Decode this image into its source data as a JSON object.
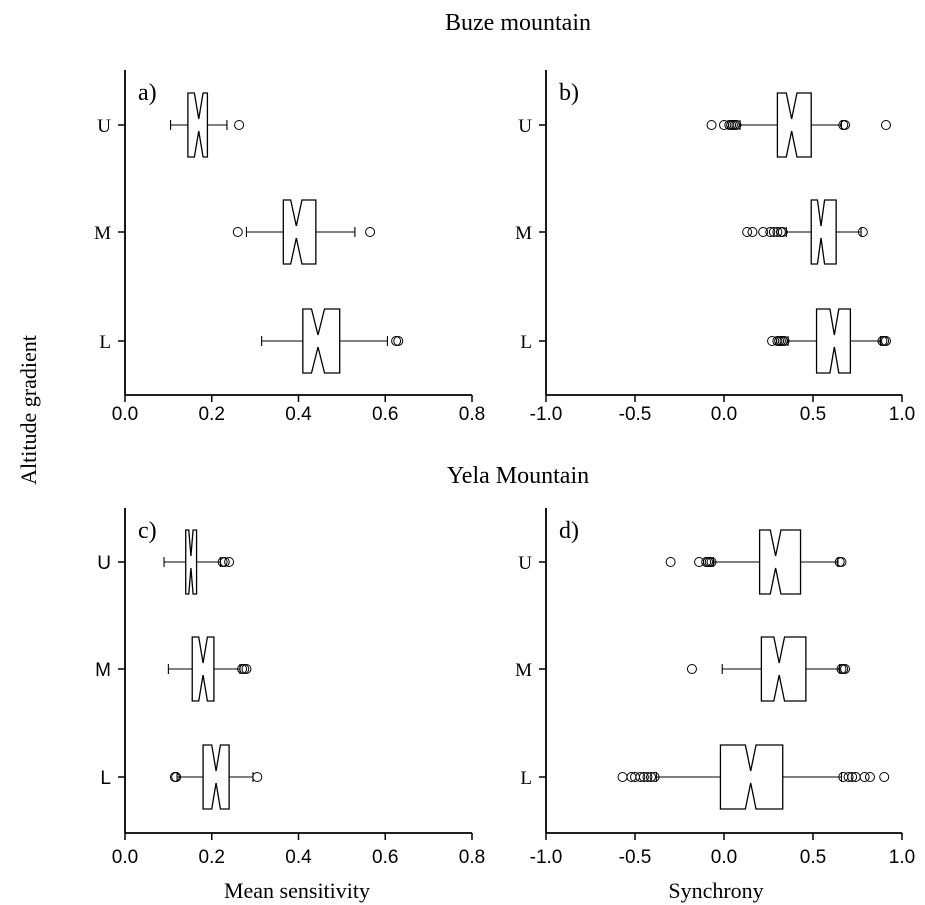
{
  "section_titles": {
    "top": "Buze mountain",
    "bottom": "Yela Mountain"
  },
  "shared_labels": {
    "ylabel": "Altitude gradient",
    "xlabel_left": "Mean sensitivity",
    "xlabel_right": "Synchrony"
  },
  "chart_data": [
    {
      "type": "boxplot",
      "panel": "a)",
      "orientation": "horizontal",
      "categories": [
        "U",
        "M",
        "L"
      ],
      "xlim": [
        0,
        0.8
      ],
      "xticks": [
        "0.0",
        "0.2",
        "0.4",
        "0.6",
        "0.8"
      ],
      "boxes": [
        {
          "category": "U",
          "whisker_low": 0.105,
          "q1": 0.145,
          "median": 0.17,
          "q3": 0.19,
          "notch_low": 0.16,
          "notch_high": 0.18,
          "whisker_high": 0.235,
          "outliers": [
            0.263
          ]
        },
        {
          "category": "M",
          "whisker_low": 0.28,
          "q1": 0.365,
          "median": 0.395,
          "q3": 0.44,
          "notch_low": 0.382,
          "notch_high": 0.408,
          "whisker_high": 0.53,
          "outliers": [
            0.26,
            0.565
          ]
        },
        {
          "category": "L",
          "whisker_low": 0.315,
          "q1": 0.41,
          "median": 0.445,
          "q3": 0.495,
          "notch_low": 0.43,
          "notch_high": 0.46,
          "whisker_high": 0.605,
          "outliers": [
            0.625,
            0.63
          ]
        }
      ]
    },
    {
      "type": "boxplot",
      "panel": "b)",
      "orientation": "horizontal",
      "categories": [
        "U",
        "M",
        "L"
      ],
      "xlim": [
        -1,
        1
      ],
      "xticks": [
        "-1.0",
        "-0.5",
        "0.0",
        "0.5",
        "1.0"
      ],
      "boxes": [
        {
          "category": "U",
          "whisker_low": 0.09,
          "q1": 0.3,
          "median": 0.38,
          "q3": 0.49,
          "notch_low": 0.35,
          "notch_high": 0.41,
          "whisker_high": 0.66,
          "outliers": [
            -0.07,
            0.0,
            0.03,
            0.04,
            0.05,
            0.06,
            0.07,
            0.67,
            0.68,
            0.91
          ]
        },
        {
          "category": "M",
          "whisker_low": 0.35,
          "q1": 0.49,
          "median": 0.545,
          "q3": 0.63,
          "notch_low": 0.525,
          "notch_high": 0.565,
          "whisker_high": 0.77,
          "outliers": [
            0.13,
            0.16,
            0.22,
            0.26,
            0.28,
            0.3,
            0.32,
            0.33,
            0.78
          ]
        },
        {
          "category": "L",
          "whisker_low": 0.36,
          "q1": 0.52,
          "median": 0.62,
          "q3": 0.71,
          "notch_low": 0.595,
          "notch_high": 0.645,
          "whisker_high": 0.88,
          "outliers": [
            0.27,
            0.3,
            0.31,
            0.32,
            0.33,
            0.34,
            0.89,
            0.9,
            0.91
          ]
        }
      ]
    },
    {
      "type": "boxplot",
      "panel": "c)",
      "orientation": "horizontal",
      "categories": [
        "U",
        "M",
        "L"
      ],
      "xlim": [
        0,
        0.8
      ],
      "xticks": [
        "0.0",
        "0.2",
        "0.4",
        "0.6",
        "0.8"
      ],
      "boxes": [
        {
          "category": "U",
          "whisker_low": 0.09,
          "q1": 0.14,
          "median": 0.152,
          "q3": 0.165,
          "notch_low": 0.147,
          "notch_high": 0.157,
          "whisker_high": 0.22,
          "outliers": [
            0.225,
            0.23,
            0.24
          ]
        },
        {
          "category": "M",
          "whisker_low": 0.1,
          "q1": 0.155,
          "median": 0.18,
          "q3": 0.205,
          "notch_low": 0.17,
          "notch_high": 0.19,
          "whisker_high": 0.265,
          "outliers": [
            0.27,
            0.275,
            0.28
          ]
        },
        {
          "category": "L",
          "whisker_low": 0.12,
          "q1": 0.18,
          "median": 0.21,
          "q3": 0.24,
          "notch_low": 0.2,
          "notch_high": 0.22,
          "whisker_high": 0.295,
          "outliers": [
            0.115,
            0.118,
            0.305
          ]
        }
      ]
    },
    {
      "type": "boxplot",
      "panel": "d)",
      "orientation": "horizontal",
      "categories": [
        "U",
        "M",
        "L"
      ],
      "xlim": [
        -1,
        1
      ],
      "xticks": [
        "-1.0",
        "-0.5",
        "0.0",
        "0.5",
        "1.0"
      ],
      "boxes": [
        {
          "category": "U",
          "whisker_low": -0.06,
          "q1": 0.2,
          "median": 0.29,
          "q3": 0.43,
          "notch_low": 0.26,
          "notch_high": 0.32,
          "whisker_high": 0.64,
          "outliers": [
            -0.3,
            -0.14,
            -0.1,
            -0.09,
            -0.08,
            -0.07,
            0.65,
            0.66
          ]
        },
        {
          "category": "M",
          "whisker_low": -0.01,
          "q1": 0.21,
          "median": 0.31,
          "q3": 0.46,
          "notch_low": 0.28,
          "notch_high": 0.34,
          "whisker_high": 0.65,
          "outliers": [
            -0.18,
            0.66,
            0.67,
            0.68
          ]
        },
        {
          "category": "L",
          "whisker_low": -0.38,
          "q1": -0.02,
          "median": 0.15,
          "q3": 0.33,
          "notch_low": 0.12,
          "notch_high": 0.18,
          "whisker_high": 0.66,
          "outliers": [
            -0.57,
            -0.52,
            -0.5,
            -0.47,
            -0.45,
            -0.43,
            -0.41,
            -0.39,
            0.67,
            0.7,
            0.72,
            0.74,
            0.79,
            0.82,
            0.9
          ]
        }
      ]
    }
  ]
}
